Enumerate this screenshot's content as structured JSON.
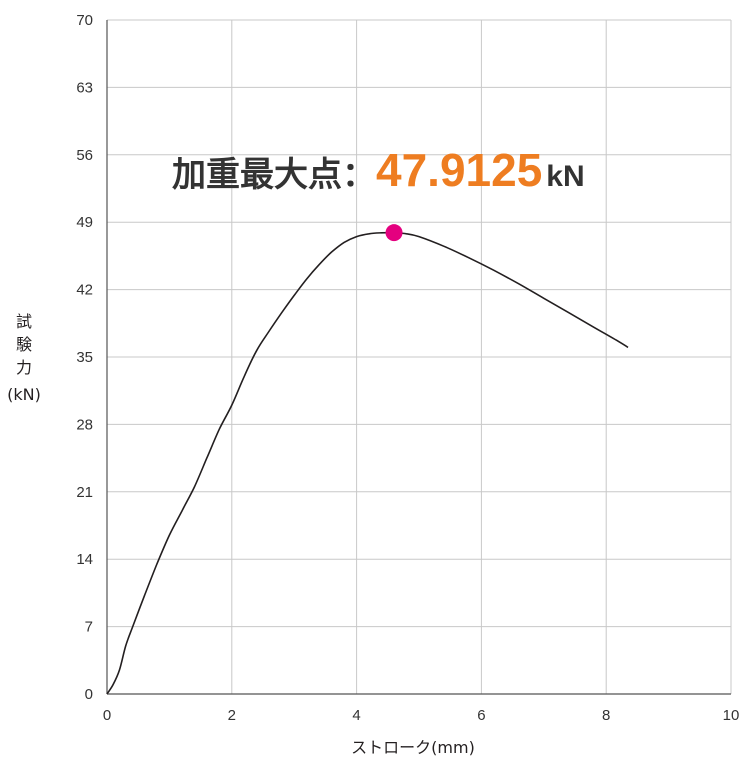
{
  "chart_data": {
    "type": "line",
    "xlabel": "ストローク(mm)",
    "ylabel_lines": [
      "試",
      "験",
      "力",
      "(kN)"
    ],
    "xlim": [
      0,
      10
    ],
    "ylim": [
      0,
      70
    ],
    "x_ticks": [
      0,
      2,
      4,
      6,
      8,
      10
    ],
    "y_ticks": [
      0,
      7,
      14,
      21,
      28,
      35,
      42,
      49,
      56,
      63,
      70
    ],
    "grid": true,
    "series": [
      {
        "color": "#231f20",
        "x": [
          0,
          0.1,
          0.2,
          0.3,
          0.4,
          0.6,
          0.8,
          1.0,
          1.2,
          1.4,
          1.6,
          1.8,
          2.0,
          2.2,
          2.4,
          2.6,
          2.8,
          3.0,
          3.2,
          3.4,
          3.6,
          3.8,
          4.0,
          4.2,
          4.4,
          4.6,
          4.8,
          5.0,
          5.4,
          5.8,
          6.2,
          6.6,
          7.0,
          7.4,
          7.8,
          8.2,
          8.35
        ],
        "y": [
          0,
          1.0,
          2.5,
          5.0,
          6.8,
          10.2,
          13.5,
          16.5,
          19.0,
          21.5,
          24.5,
          27.5,
          30.0,
          33.0,
          35.7,
          37.7,
          39.6,
          41.4,
          43.1,
          44.6,
          45.9,
          46.9,
          47.5,
          47.8,
          47.9,
          47.9,
          47.8,
          47.5,
          46.5,
          45.3,
          44.0,
          42.6,
          41.1,
          39.6,
          38.1,
          36.6,
          36.0
        ]
      }
    ],
    "annotations": [
      {
        "label": "加重最大点：",
        "value": "47.9125",
        "unit": "kN",
        "point": {
          "x": 4.6,
          "y": 47.9125
        },
        "marker_color": "#e4007f",
        "value_color": "#ee7d21"
      }
    ]
  }
}
